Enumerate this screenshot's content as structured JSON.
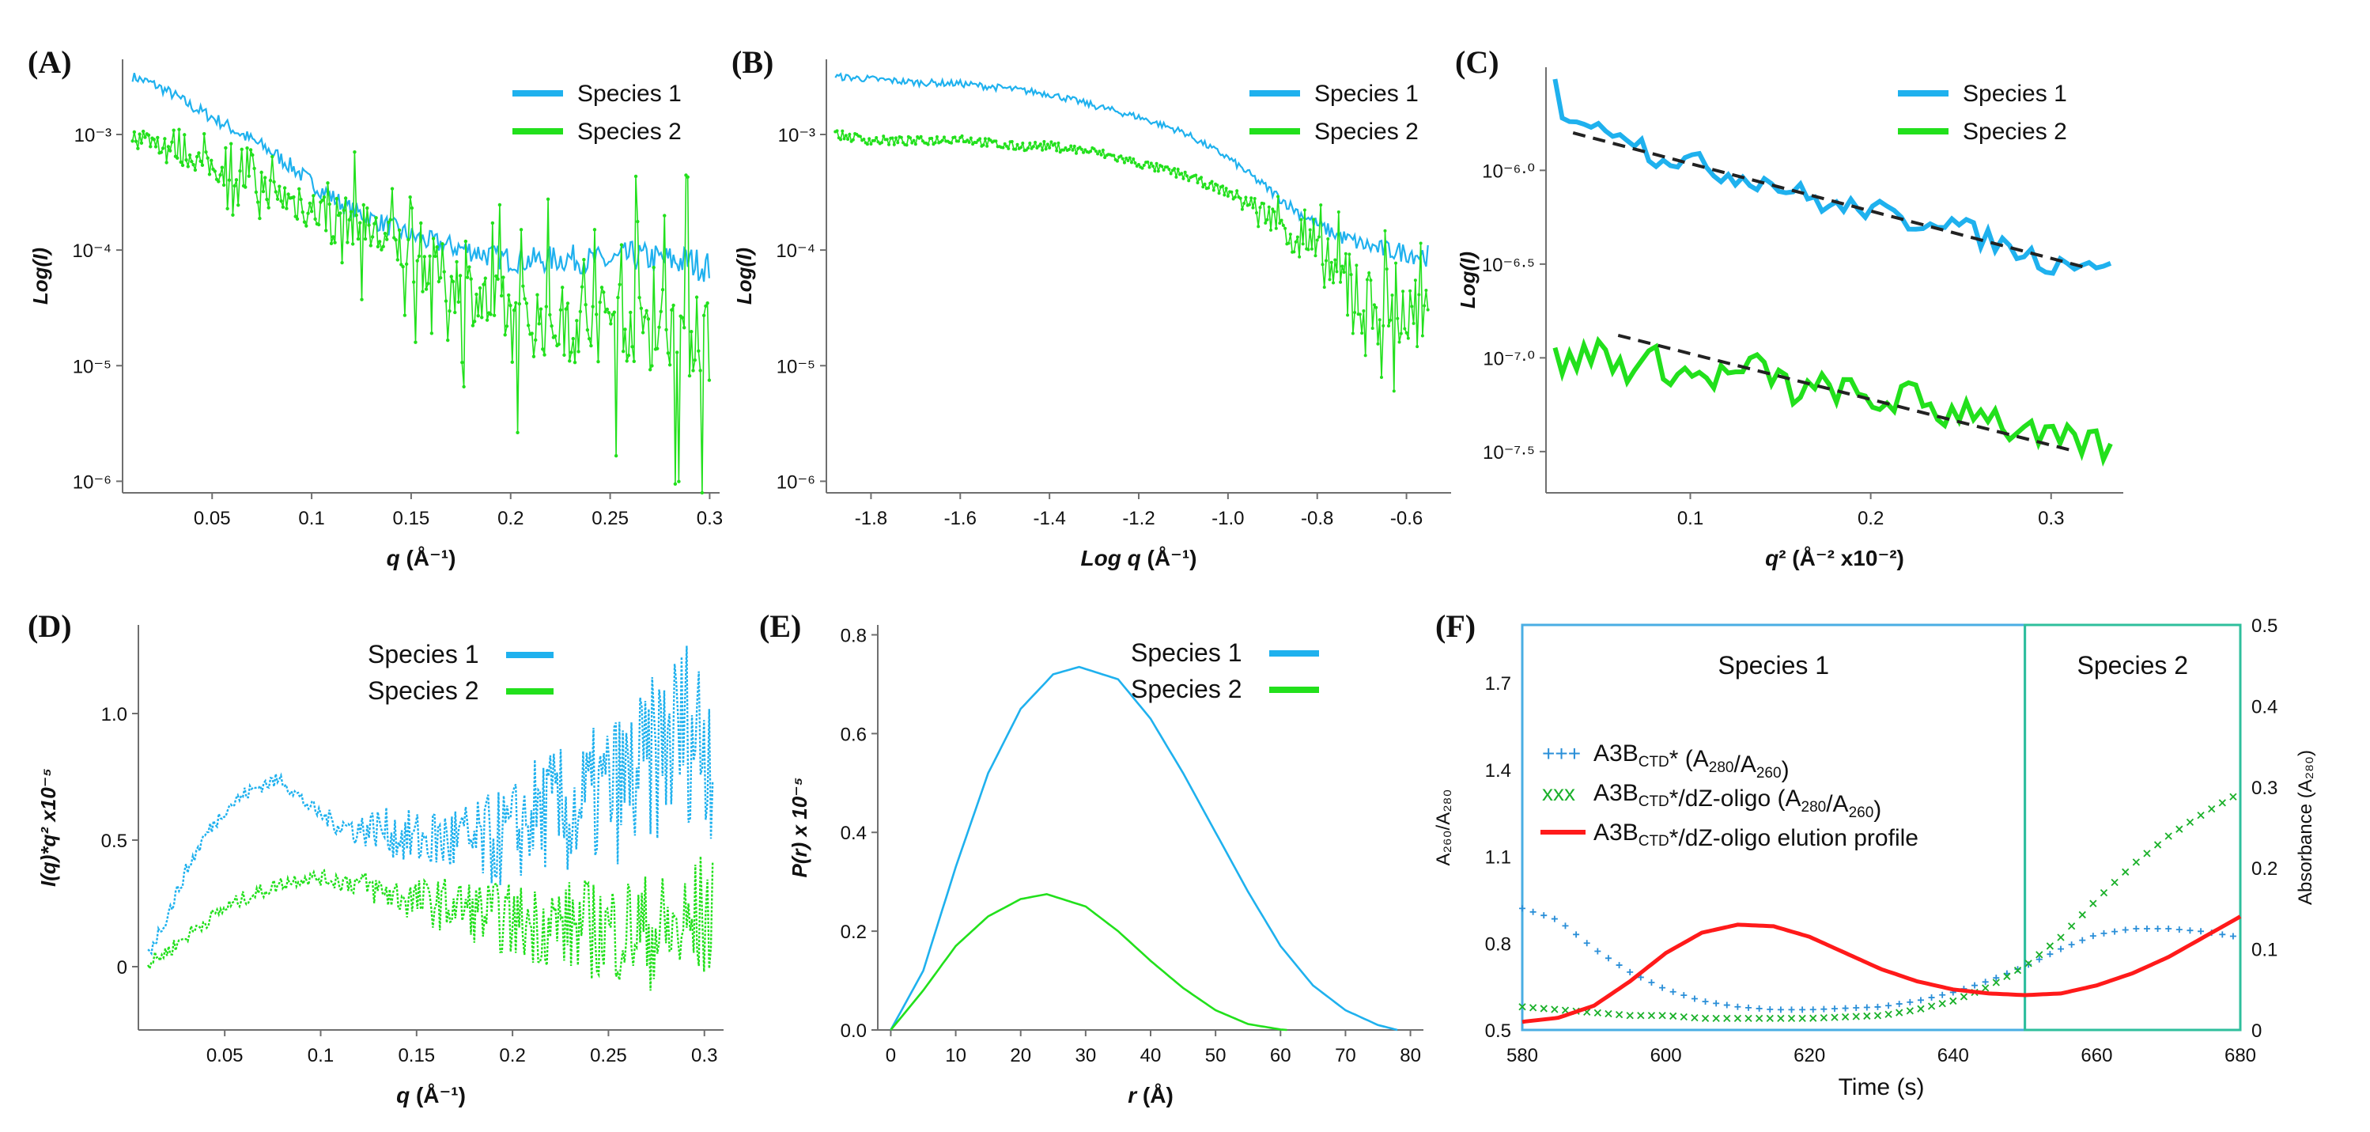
{
  "colors": {
    "species1": "#1fb1ee",
    "species2": "#22e01c",
    "fit": "#222222",
    "elution": "#ff1a1a",
    "frameS1": "#4aaee3",
    "frameS2": "#2fbf9c",
    "axis": "#6f6f6f"
  },
  "chart_data": [
    {
      "id": "A",
      "type": "line",
      "panel_label": "(A)",
      "xlabel_main": "q",
      "xlabel_unit": " (Å⁻¹)",
      "ylabel": "Log(I)",
      "yscale": "log",
      "xlim": [
        0.005,
        0.305
      ],
      "ylim": [
        -6.1,
        -2.35
      ],
      "xticks": [
        0.05,
        0.1,
        0.15,
        0.2,
        0.25,
        0.3
      ],
      "xtick_labels": [
        "0.05",
        "0.1",
        "0.15",
        "0.2",
        "0.25",
        "0.3"
      ],
      "yticks": [
        -3,
        -4,
        -5,
        -6
      ],
      "ytick_labels": [
        "10⁻³",
        "10⁻⁴",
        "10⁻⁵",
        "10⁻⁶"
      ],
      "legend": [
        "Species 1",
        "Species 2"
      ],
      "series": [
        {
          "name": "Species 1",
          "x": [
            0.01,
            0.02,
            0.03,
            0.04,
            0.05,
            0.06,
            0.07,
            0.08,
            0.09,
            0.1,
            0.11,
            0.12,
            0.13,
            0.14,
            0.15,
            0.16,
            0.17,
            0.18,
            0.19,
            0.2,
            0.21,
            0.22,
            0.23,
            0.24,
            0.25,
            0.26,
            0.27,
            0.28,
            0.29,
            0.3
          ],
          "y": [
            -2.5,
            -2.56,
            -2.65,
            -2.76,
            -2.85,
            -2.95,
            -3.05,
            -3.15,
            -3.28,
            -3.42,
            -3.54,
            -3.65,
            -3.73,
            -3.8,
            -3.88,
            -3.93,
            -3.97,
            -4.0,
            -4.05,
            -4.08,
            -4.09,
            -4.08,
            -4.07,
            -4.09,
            -4.1,
            -4.05,
            -4.07,
            -4.09,
            -4.1,
            -4.15
          ]
        },
        {
          "name": "Species 2",
          "x": [
            0.01,
            0.02,
            0.03,
            0.04,
            0.05,
            0.06,
            0.07,
            0.08,
            0.09,
            0.1,
            0.11,
            0.12,
            0.13,
            0.14,
            0.15,
            0.16,
            0.17,
            0.18,
            0.19,
            0.2,
            0.21,
            0.22,
            0.23,
            0.24,
            0.25,
            0.26,
            0.27,
            0.28,
            0.29,
            0.3
          ],
          "y": [
            -3.0,
            -3.05,
            -3.12,
            -3.2,
            -3.28,
            -3.36,
            -3.42,
            -3.5,
            -3.58,
            -3.65,
            -3.7,
            -3.75,
            -3.85,
            -3.95,
            -4.05,
            -4.15,
            -4.25,
            -4.35,
            -4.5,
            -4.55,
            -4.6,
            -4.6,
            -4.65,
            -4.6,
            -4.55,
            -4.6,
            -4.6,
            -4.65,
            -4.7,
            -4.8
          ]
        }
      ]
    },
    {
      "id": "B",
      "type": "line",
      "panel_label": "(B)",
      "xlabel_main": "Log q",
      "xlabel_unit": " (Å⁻¹)",
      "ylabel": "Log(I)",
      "yscale": "log",
      "xlim": [
        -1.9,
        -0.5
      ],
      "ylim": [
        -6.1,
        -2.35
      ],
      "xticks": [
        -1.8,
        -1.6,
        -1.4,
        -1.2,
        -1.0,
        -0.8,
        -0.6
      ],
      "xtick_labels": [
        "-1.8",
        "-1.6",
        "-1.4",
        "-1.2",
        "-1.0",
        "-0.8",
        "-0.6"
      ],
      "yticks": [
        -3,
        -4,
        -5,
        -6
      ],
      "ytick_labels": [
        "10⁻³",
        "10⁻⁴",
        "10⁻⁵",
        "10⁻⁶"
      ],
      "legend": [
        "Species 1",
        "Species 2"
      ],
      "series": [
        {
          "name": "Species 1",
          "x": [
            -1.88,
            -1.8,
            -1.7,
            -1.6,
            -1.5,
            -1.4,
            -1.3,
            -1.2,
            -1.1,
            -1.0,
            -0.95,
            -0.9,
            -0.85,
            -0.8,
            -0.75,
            -0.7,
            -0.65,
            -0.6,
            -0.55
          ],
          "y": [
            -2.5,
            -2.52,
            -2.55,
            -2.56,
            -2.6,
            -2.65,
            -2.75,
            -2.85,
            -2.98,
            -3.2,
            -3.35,
            -3.5,
            -3.65,
            -3.78,
            -3.88,
            -3.95,
            -4.0,
            -4.02,
            -4.05
          ]
        },
        {
          "name": "Species 2",
          "x": [
            -1.88,
            -1.8,
            -1.7,
            -1.6,
            -1.5,
            -1.4,
            -1.3,
            -1.2,
            -1.1,
            -1.0,
            -0.95,
            -0.9,
            -0.85,
            -0.8,
            -0.75,
            -0.7,
            -0.65,
            -0.6,
            -0.55
          ],
          "y": [
            -3.0,
            -3.05,
            -3.06,
            -3.03,
            -3.1,
            -3.1,
            -3.15,
            -3.25,
            -3.35,
            -3.5,
            -3.6,
            -3.72,
            -3.85,
            -4.05,
            -4.25,
            -4.4,
            -4.55,
            -4.6,
            -4.75
          ]
        }
      ]
    },
    {
      "id": "C",
      "type": "line",
      "panel_label": "(C)",
      "xlabel_main": "q",
      "xlabel_unit": "² (Å⁻² x10⁻²)",
      "ylabel": "Log(I)",
      "yscale": "log",
      "xlim": [
        0.02,
        0.34
      ],
      "ylim": [
        -7.72,
        -5.45
      ],
      "xticks": [
        0.1,
        0.2,
        0.3
      ],
      "xtick_labels": [
        "0.1",
        "0.2",
        "0.3"
      ],
      "yticks": [
        -6.0,
        -6.5,
        -7.0,
        -7.5
      ],
      "ytick_labels": [
        "10⁻⁶·⁰",
        "10⁻⁶·⁵",
        "10⁻⁷·⁰",
        "10⁻⁷·⁵"
      ],
      "legend": [
        "Species 1",
        "Species 2"
      ],
      "series": [
        {
          "name": "Species 1",
          "x": [
            0.025,
            0.03,
            0.04,
            0.05,
            0.06,
            0.08,
            0.1,
            0.12,
            0.14,
            0.16,
            0.18,
            0.2,
            0.22,
            0.24,
            0.26,
            0.28,
            0.3,
            0.32,
            0.335
          ],
          "y": [
            -5.55,
            -5.7,
            -5.72,
            -5.8,
            -5.76,
            -5.92,
            -5.95,
            -6.02,
            -6.05,
            -6.12,
            -6.2,
            -6.2,
            -6.28,
            -6.25,
            -6.35,
            -6.42,
            -6.5,
            -6.47,
            -6.55
          ]
        },
        {
          "name": "Species 2",
          "x": [
            0.025,
            0.03,
            0.04,
            0.05,
            0.06,
            0.08,
            0.1,
            0.12,
            0.14,
            0.16,
            0.18,
            0.2,
            0.22,
            0.24,
            0.26,
            0.28,
            0.3,
            0.32,
            0.335
          ],
          "y": [
            -6.9,
            -7.05,
            -7.0,
            -6.95,
            -7.05,
            -7.02,
            -7.1,
            -7.1,
            -7.05,
            -7.2,
            -7.15,
            -7.25,
            -7.2,
            -7.3,
            -7.25,
            -7.4,
            -7.45,
            -7.45,
            -7.5
          ]
        },
        {
          "name": "Guinier fit 1",
          "style": "dashed",
          "x": [
            0.035,
            0.32
          ],
          "y": [
            -5.8,
            -6.52
          ]
        },
        {
          "name": "Guinier fit 2",
          "style": "dashed",
          "x": [
            0.06,
            0.31
          ],
          "y": [
            -6.88,
            -7.49
          ]
        }
      ]
    },
    {
      "id": "D",
      "type": "line",
      "panel_label": "(D)",
      "xlabel_main": "q",
      "xlabel_unit": " (Å⁻¹)",
      "ylabel": "I(q)*q² x10⁻⁵",
      "xlim": [
        0.005,
        0.31
      ],
      "ylim": [
        -0.25,
        1.35
      ],
      "xticks": [
        0.05,
        0.1,
        0.15,
        0.2,
        0.25,
        0.3
      ],
      "xtick_labels": [
        "0.05",
        "0.1",
        "0.15",
        "0.2",
        "0.25",
        "0.3"
      ],
      "yticks": [
        0,
        0.5,
        1.0
      ],
      "ytick_labels": [
        "0",
        "0.5",
        "1.0"
      ],
      "legend": [
        "Species 1",
        "Species 2"
      ],
      "series": [
        {
          "name": "Species 1",
          "x": [
            0.01,
            0.02,
            0.03,
            0.04,
            0.05,
            0.06,
            0.07,
            0.08,
            0.09,
            0.1,
            0.11,
            0.12,
            0.13,
            0.14,
            0.15,
            0.16,
            0.17,
            0.18,
            0.19,
            0.2,
            0.21,
            0.22,
            0.23,
            0.24,
            0.25,
            0.26,
            0.27,
            0.28,
            0.29,
            0.3
          ],
          "y": [
            0.05,
            0.2,
            0.38,
            0.52,
            0.62,
            0.68,
            0.72,
            0.74,
            0.66,
            0.6,
            0.56,
            0.54,
            0.55,
            0.52,
            0.5,
            0.5,
            0.5,
            0.48,
            0.5,
            0.52,
            0.6,
            0.62,
            0.6,
            0.65,
            0.7,
            0.72,
            0.78,
            0.88,
            0.95,
            0.9
          ]
        },
        {
          "name": "Species 2",
          "x": [
            0.01,
            0.02,
            0.03,
            0.04,
            0.05,
            0.06,
            0.07,
            0.08,
            0.09,
            0.1,
            0.11,
            0.12,
            0.13,
            0.14,
            0.15,
            0.16,
            0.17,
            0.18,
            0.19,
            0.2,
            0.21,
            0.22,
            0.23,
            0.24,
            0.25,
            0.26,
            0.27,
            0.28,
            0.29,
            0.3
          ],
          "y": [
            0.01,
            0.06,
            0.12,
            0.18,
            0.23,
            0.27,
            0.3,
            0.33,
            0.35,
            0.35,
            0.34,
            0.33,
            0.3,
            0.28,
            0.26,
            0.25,
            0.24,
            0.22,
            0.2,
            0.18,
            0.17,
            0.17,
            0.16,
            0.15,
            0.14,
            0.15,
            0.14,
            0.13,
            0.14,
            0.2
          ]
        }
      ]
    },
    {
      "id": "E",
      "type": "line",
      "panel_label": "(E)",
      "xlabel_main": "r",
      "xlabel_unit": " (Å)",
      "ylabel": "P(r) x 10⁻⁵",
      "xlim": [
        -2,
        82
      ],
      "ylim": [
        0,
        0.82
      ],
      "xticks": [
        0,
        10,
        20,
        30,
        40,
        50,
        60,
        70,
        80
      ],
      "xtick_labels": [
        "0",
        "10",
        "20",
        "30",
        "40",
        "50",
        "60",
        "70",
        "80"
      ],
      "yticks": [
        0,
        0.2,
        0.4,
        0.6,
        0.8
      ],
      "ytick_labels": [
        "0.0",
        "0.2",
        "0.4",
        "0.6",
        "0.8"
      ],
      "legend": [
        "Species 1",
        "Species 2"
      ],
      "series": [
        {
          "name": "Species 1",
          "x": [
            0,
            5,
            10,
            15,
            20,
            25,
            29,
            35,
            40,
            45,
            50,
            55,
            60,
            65,
            70,
            75,
            78
          ],
          "y": [
            0,
            0.12,
            0.33,
            0.52,
            0.65,
            0.72,
            0.735,
            0.71,
            0.63,
            0.52,
            0.4,
            0.28,
            0.17,
            0.09,
            0.04,
            0.01,
            0
          ]
        },
        {
          "name": "Species 2",
          "x": [
            0,
            5,
            10,
            15,
            20,
            24,
            30,
            35,
            40,
            45,
            50,
            55,
            60,
            61
          ],
          "y": [
            0,
            0.08,
            0.17,
            0.23,
            0.265,
            0.275,
            0.25,
            0.2,
            0.14,
            0.085,
            0.04,
            0.012,
            0.001,
            0
          ]
        }
      ]
    },
    {
      "id": "F",
      "type": "line",
      "panel_label": "(F)",
      "xlabel": "Time (s)",
      "ylabel_left": "A₂₆₀/A₂₈₀",
      "ylabel_right": "Absorbance (A₂₈₀)",
      "xlim": [
        580,
        680
      ],
      "ylim_left": [
        0.5,
        1.9
      ],
      "ylim_right": [
        0,
        0.5
      ],
      "xticks": [
        580,
        600,
        620,
        640,
        660,
        680
      ],
      "xtick_labels": [
        "580",
        "600",
        "620",
        "640",
        "660",
        "680"
      ],
      "yticks_left": [
        0.5,
        0.8,
        1.1,
        1.4,
        1.7
      ],
      "ytick_labels_left": [
        "0.5",
        "0.8",
        "1.1",
        "1.4",
        "1.7"
      ],
      "yticks_right": [
        0,
        0.1,
        0.2,
        0.3,
        0.4,
        0.5
      ],
      "ytick_labels_right": [
        "0",
        "0.1",
        "0.2",
        "0.3",
        "0.4",
        "0.5"
      ],
      "region_split": 650,
      "region_labels": [
        "Species 1",
        "Species 2"
      ],
      "legend": [
        {
          "marker": "+++",
          "text": "A3B",
          "sub": "CTD",
          "rest": "* (A",
          "sub2": "280",
          "mid": "/A",
          "sub3": "260",
          "end": ")"
        },
        {
          "marker": "xxx",
          "text": "A3B",
          "sub": "CTD",
          "rest": "*/dZ-oligo (A",
          "sub2": "280",
          "mid": "/A",
          "sub3": "260",
          "end": ")"
        },
        {
          "marker": "",
          "text": "A3B",
          "sub": "CTD",
          "rest": "*/dZ-oligo elution profile",
          "sub2": "",
          "mid": "",
          "sub3": "",
          "end": ""
        }
      ],
      "series": [
        {
          "name": "A3B_CTD* (A280/A260)",
          "axis": "left",
          "x": [
            580,
            585,
            590,
            595,
            600,
            605,
            610,
            615,
            620,
            625,
            630,
            635,
            640,
            645,
            650,
            655,
            660,
            665,
            670,
            675,
            680
          ],
          "y": [
            0.92,
            0.88,
            0.78,
            0.7,
            0.64,
            0.6,
            0.58,
            0.57,
            0.57,
            0.575,
            0.58,
            0.6,
            0.63,
            0.67,
            0.72,
            0.78,
            0.83,
            0.85,
            0.85,
            0.84,
            0.82
          ]
        },
        {
          "name": "A3B_CTD*/dZ-oligo (A280/A260)",
          "axis": "left",
          "x": [
            580,
            585,
            590,
            595,
            600,
            605,
            610,
            615,
            620,
            625,
            630,
            635,
            640,
            645,
            650,
            655,
            660,
            665,
            670,
            675,
            680
          ],
          "y": [
            0.58,
            0.57,
            0.56,
            0.55,
            0.55,
            0.54,
            0.54,
            0.54,
            0.54,
            0.545,
            0.55,
            0.57,
            0.6,
            0.65,
            0.72,
            0.82,
            0.95,
            1.07,
            1.17,
            1.25,
            1.32
          ]
        },
        {
          "name": "A3B_CTD*/dZ-oligo elution profile",
          "axis": "right",
          "x": [
            580,
            585,
            590,
            595,
            600,
            605,
            610,
            615,
            620,
            625,
            630,
            635,
            640,
            645,
            650,
            655,
            660,
            665,
            670,
            675,
            680
          ],
          "y": [
            0.01,
            0.015,
            0.03,
            0.06,
            0.095,
            0.12,
            0.13,
            0.128,
            0.115,
            0.095,
            0.075,
            0.06,
            0.05,
            0.045,
            0.043,
            0.045,
            0.055,
            0.07,
            0.09,
            0.115,
            0.14
          ]
        }
      ]
    }
  ]
}
